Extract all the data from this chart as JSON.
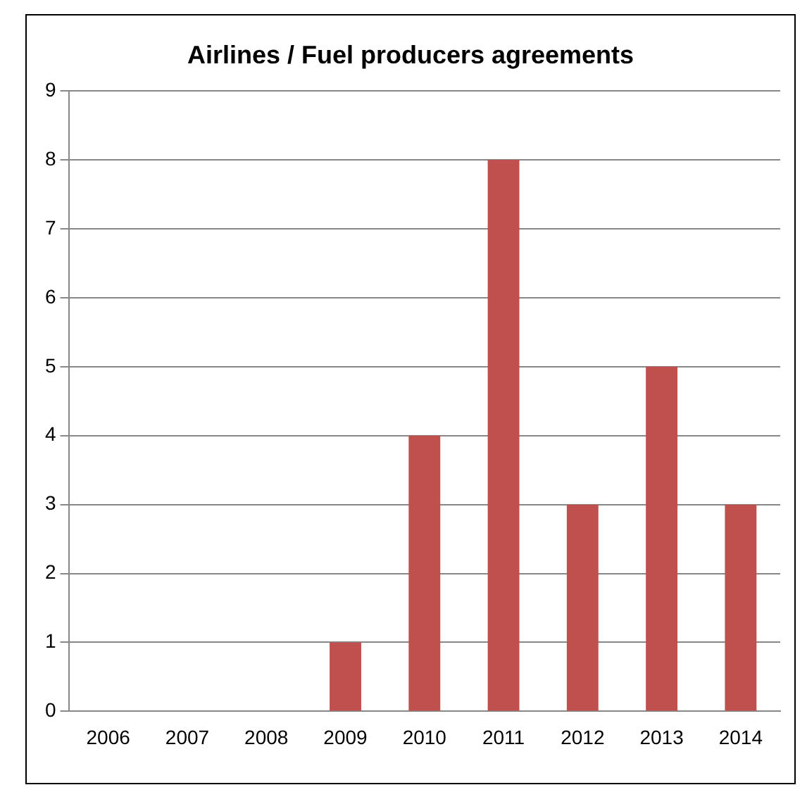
{
  "chart_data": {
    "type": "bar",
    "title": "Airlines / Fuel producers agreements",
    "categories": [
      "2006",
      "2007",
      "2008",
      "2009",
      "2010",
      "2011",
      "2012",
      "2013",
      "2014"
    ],
    "values": [
      0,
      0,
      0,
      1,
      4,
      8,
      3,
      5,
      3
    ],
    "color": "#c0504d",
    "ylim": [
      0,
      9
    ],
    "yticks": [
      0,
      1,
      2,
      3,
      4,
      5,
      6,
      7,
      8,
      9
    ],
    "grid": "y",
    "legend": false
  }
}
